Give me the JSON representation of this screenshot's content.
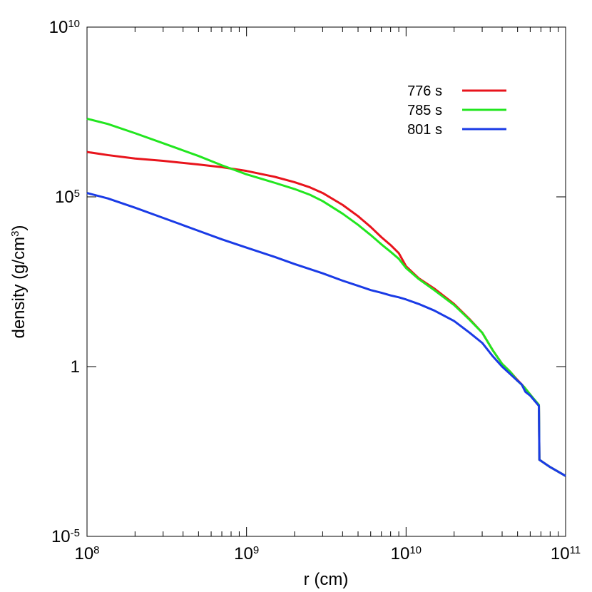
{
  "chart_data": {
    "type": "line",
    "xlabel": "r (cm)",
    "ylabel_parts": {
      "base": "density (g/cm",
      "sup": "3",
      "close": ")"
    },
    "xscale": "log",
    "yscale": "log",
    "xlim": [
      100000000.0,
      100000000000.0
    ],
    "ylim": [
      1e-05,
      10000000000.0
    ],
    "x_ticks": [
      {
        "base": "10",
        "exp": "8",
        "value": 100000000.0
      },
      {
        "base": "10",
        "exp": "9",
        "value": 1000000000.0
      },
      {
        "base": "10",
        "exp": "10",
        "value": 10000000000.0
      },
      {
        "base": "10",
        "exp": "11",
        "value": 100000000000.0
      }
    ],
    "y_ticks": [
      {
        "base": "10",
        "exp": "-5",
        "value": 1e-05
      },
      {
        "base": "1",
        "exp": "",
        "value": 1
      },
      {
        "base": "10",
        "exp": "5",
        "value": 100000.0
      },
      {
        "base": "10",
        "exp": "10",
        "value": 10000000000.0
      }
    ],
    "grid": false,
    "legend_position": "top-right",
    "series": [
      {
        "name": "776 s",
        "color": "#e8141c",
        "points": [
          [
            100000000.0,
            2100000.0
          ],
          [
            135000000.0,
            1700000.0
          ],
          [
            200000000.0,
            1350000.0
          ],
          [
            300000000.0,
            1150000.0
          ],
          [
            500000000.0,
            900000.0
          ],
          [
            700000000.0,
            750000.0
          ],
          [
            1000000000.0,
            580000.0
          ],
          [
            1500000000.0,
            390000.0
          ],
          [
            2000000000.0,
            270000.0
          ],
          [
            2500000000.0,
            190000.0
          ],
          [
            3000000000.0,
            130000.0
          ],
          [
            4000000000.0,
            58000.0
          ],
          [
            5000000000.0,
            27000.0
          ],
          [
            6000000000.0,
            13000.0
          ],
          [
            7000000000.0,
            6500.0
          ],
          [
            8000000000.0,
            3800.0
          ],
          [
            9000000000.0,
            2200.0
          ],
          [
            10000000000.0,
            900
          ],
          [
            12000000000.0,
            400
          ],
          [
            15000000000.0,
            200
          ],
          [
            20000000000.0,
            70
          ],
          [
            25000000000.0,
            25
          ],
          [
            30000000000.0,
            10
          ],
          [
            35000000000.0,
            3.0
          ],
          [
            40000000000.0,
            1.2
          ],
          [
            45000000000.0,
            0.7
          ],
          [
            50000000000.0,
            0.4
          ],
          [
            55000000000.0,
            0.25
          ],
          [
            60000000000.0,
            0.15
          ],
          [
            68000000000.0,
            0.07
          ],
          [
            68500000000.0,
            0.0018
          ],
          [
            80000000000.0,
            0.0011
          ],
          [
            100000000000.0,
            0.0006
          ]
        ]
      },
      {
        "name": "785 s",
        "color": "#22e61f",
        "points": [
          [
            100000000.0,
            20000000.0
          ],
          [
            135000000.0,
            14000000.0
          ],
          [
            200000000.0,
            7500000.0
          ],
          [
            300000000.0,
            3800000.0
          ],
          [
            500000000.0,
            1600000.0
          ],
          [
            700000000.0,
            850000.0
          ],
          [
            1000000000.0,
            460000.0
          ],
          [
            1500000000.0,
            260000.0
          ],
          [
            2000000000.0,
            170000.0
          ],
          [
            2500000000.0,
            115000.0
          ],
          [
            3000000000.0,
            75000.0
          ],
          [
            4000000000.0,
            32000.0
          ],
          [
            5000000000.0,
            15000.0
          ],
          [
            6000000000.0,
            7500.0
          ],
          [
            7000000000.0,
            4000.0
          ],
          [
            8000000000.0,
            2400.0
          ],
          [
            9000000000.0,
            1500.0
          ],
          [
            10000000000.0,
            800
          ],
          [
            12000000000.0,
            380
          ],
          [
            15000000000.0,
            180
          ],
          [
            20000000000.0,
            65
          ],
          [
            25000000000.0,
            24
          ],
          [
            30000000000.0,
            10
          ],
          [
            35000000000.0,
            3.0
          ],
          [
            40000000000.0,
            1.2
          ],
          [
            45000000000.0,
            0.7
          ],
          [
            50000000000.0,
            0.38
          ],
          [
            55000000000.0,
            0.25
          ],
          [
            60000000000.0,
            0.15
          ],
          [
            68000000000.0,
            0.075
          ],
          [
            68500000000.0,
            0.0018
          ],
          [
            80000000000.0,
            0.0011
          ],
          [
            100000000000.0,
            0.0006
          ]
        ]
      },
      {
        "name": "801 s",
        "color": "#1a3be6",
        "points": [
          [
            100000000.0,
            130000.0
          ],
          [
            135000000.0,
            90000.0
          ],
          [
            200000000.0,
            48000.0
          ],
          [
            300000000.0,
            24000.0
          ],
          [
            500000000.0,
            10000.0
          ],
          [
            700000000.0,
            5600.0
          ],
          [
            1000000000.0,
            3200.0
          ],
          [
            1500000000.0,
            1700.0
          ],
          [
            2000000000.0,
            1050.0
          ],
          [
            3000000000.0,
            560
          ],
          [
            4000000000.0,
            340
          ],
          [
            5000000000.0,
            240
          ],
          [
            6000000000.0,
            180
          ],
          [
            7000000000.0,
            150
          ],
          [
            8000000000.0,
            125
          ],
          [
            9000000000.0,
            110
          ],
          [
            10000000000.0,
            95
          ],
          [
            12000000000.0,
            70
          ],
          [
            15000000000.0,
            45
          ],
          [
            20000000000.0,
            22
          ],
          [
            25000000000.0,
            10
          ],
          [
            30000000000.0,
            5.0
          ],
          [
            35000000000.0,
            2.0
          ],
          [
            40000000000.0,
            1.0
          ],
          [
            45000000000.0,
            0.6
          ],
          [
            50000000000.0,
            0.38
          ],
          [
            53000000000.0,
            0.3
          ],
          [
            56000000000.0,
            0.18
          ],
          [
            60000000000.0,
            0.14
          ],
          [
            68000000000.0,
            0.07
          ],
          [
            68500000000.0,
            0.0018
          ],
          [
            80000000000.0,
            0.0011
          ],
          [
            100000000000.0,
            0.0006
          ]
        ]
      }
    ]
  }
}
